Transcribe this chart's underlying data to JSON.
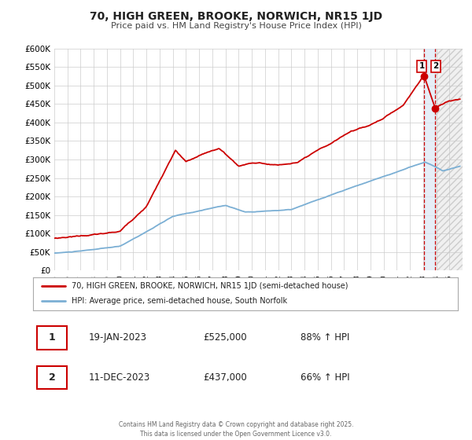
{
  "title": "70, HIGH GREEN, BROOKE, NORWICH, NR15 1JD",
  "subtitle": "Price paid vs. HM Land Registry's House Price Index (HPI)",
  "legend_line1": "70, HIGH GREEN, BROOKE, NORWICH, NR15 1JD (semi-detached house)",
  "legend_line2": "HPI: Average price, semi-detached house, South Norfolk",
  "sale1_date": "19-JAN-2023",
  "sale1_price": "£525,000",
  "sale1_hpi": "88% ↑ HPI",
  "sale2_date": "11-DEC-2023",
  "sale2_price": "£437,000",
  "sale2_hpi": "66% ↑ HPI",
  "footer": "Contains HM Land Registry data © Crown copyright and database right 2025.\nThis data is licensed under the Open Government Licence v3.0.",
  "sale1_x": 2023.05,
  "sale1_y": 525000,
  "sale2_x": 2023.92,
  "sale2_y": 437000,
  "vline_x1": 2023.05,
  "vline_x2": 2023.92,
  "red_color": "#cc0000",
  "blue_color": "#7bafd4",
  "shade_color": "#dce8f5",
  "hatch_color": "#cccccc",
  "ylim": [
    0,
    600000
  ],
  "xlim_start": 1995.0,
  "xlim_end": 2026.0,
  "background_color": "#ffffff",
  "title_fontsize": 10,
  "subtitle_fontsize": 8
}
